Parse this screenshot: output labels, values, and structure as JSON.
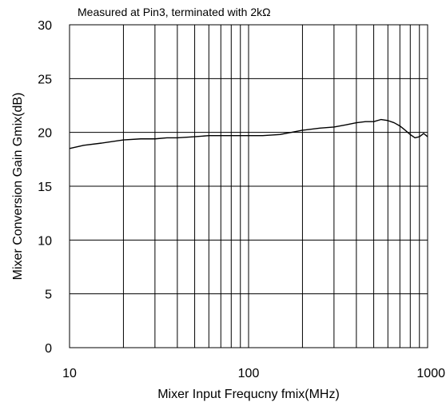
{
  "chart_data": {
    "type": "line",
    "title": "Measured at Pin3, terminated with 2kΩ",
    "xlabel": "Mixer Input Frequcny fmix(MHz)",
    "ylabel": "Mixer Conversion Gain Gmix(dB)",
    "x_scale": "log",
    "xlim": [
      10,
      1000
    ],
    "ylim": [
      0,
      30
    ],
    "x_ticks": [
      10,
      100,
      1000
    ],
    "x_tick_labels": [
      "10",
      "100",
      "1000"
    ],
    "y_ticks": [
      0,
      5,
      10,
      15,
      20,
      25,
      30
    ],
    "y_tick_labels": [
      "0",
      "5",
      "10",
      "15",
      "20",
      "25",
      "30"
    ],
    "grid": true,
    "colors": {
      "line": "#000000",
      "grid": "#000000",
      "background": "#ffffff"
    },
    "series": [
      {
        "x": [
          10,
          12,
          15,
          20,
          25,
          30,
          35,
          40,
          50,
          60,
          70,
          80,
          100,
          120,
          150,
          200,
          250,
          300,
          350,
          400,
          450,
          500,
          550,
          600,
          650,
          700,
          750,
          800,
          850,
          900,
          950,
          1000
        ],
        "y": [
          18.5,
          18.8,
          19.0,
          19.3,
          19.4,
          19.4,
          19.5,
          19.5,
          19.6,
          19.7,
          19.7,
          19.7,
          19.7,
          19.7,
          19.8,
          20.2,
          20.4,
          20.5,
          20.7,
          20.9,
          21.0,
          21.0,
          21.2,
          21.1,
          20.9,
          20.6,
          20.2,
          19.8,
          19.5,
          19.6,
          19.9,
          19.6
        ]
      }
    ]
  }
}
